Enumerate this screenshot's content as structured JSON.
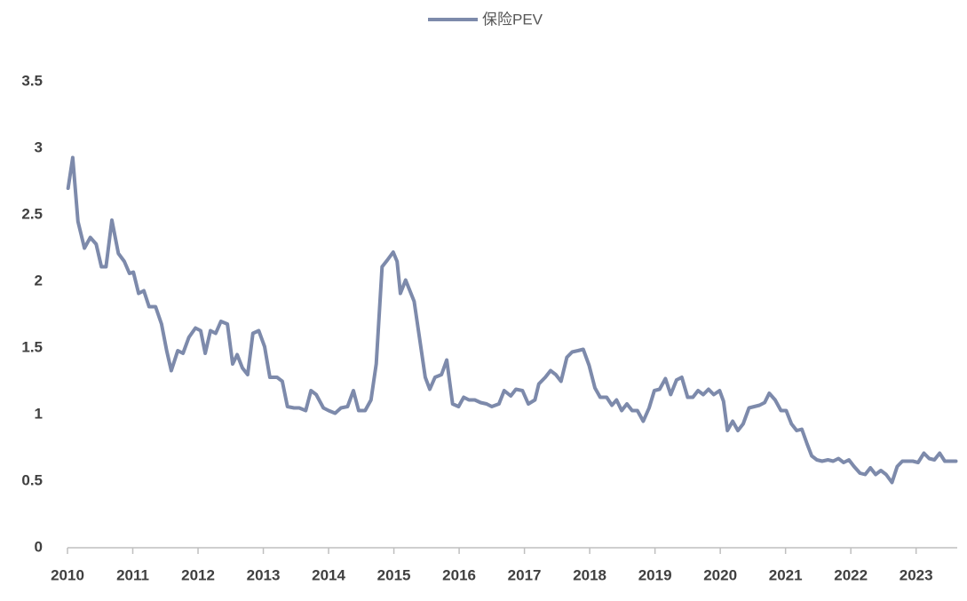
{
  "chart_data": {
    "type": "line",
    "series": [
      {
        "name": "保险PEV",
        "color": "#7d8aab",
        "x": [
          2010.01,
          2010.08,
          2010.16,
          2010.26,
          2010.35,
          2010.44,
          2010.52,
          2010.59,
          2010.68,
          2010.78,
          2010.87,
          2010.95,
          2011.01,
          2011.09,
          2011.17,
          2011.25,
          2011.35,
          2011.44,
          2011.52,
          2011.59,
          2011.69,
          2011.77,
          2011.86,
          2011.96,
          2012.04,
          2012.11,
          2012.19,
          2012.27,
          2012.35,
          2012.45,
          2012.53,
          2012.6,
          2012.68,
          2012.76,
          2012.84,
          2012.93,
          2013.02,
          2013.1,
          2013.21,
          2013.29,
          2013.37,
          2013.47,
          2013.55,
          2013.65,
          2013.73,
          2013.81,
          2013.92,
          2014.0,
          2014.1,
          2014.19,
          2014.29,
          2014.38,
          2014.46,
          2014.56,
          2014.65,
          2014.73,
          2014.82,
          2014.9,
          2014.99,
          2015.05,
          2015.1,
          2015.18,
          2015.31,
          2015.4,
          2015.48,
          2015.55,
          2015.63,
          2015.73,
          2015.81,
          2015.9,
          2015.99,
          2016.07,
          2016.15,
          2016.24,
          2016.33,
          2016.42,
          2016.5,
          2016.61,
          2016.69,
          2016.79,
          2016.87,
          2016.97,
          2017.06,
          2017.16,
          2017.22,
          2017.32,
          2017.4,
          2017.48,
          2017.56,
          2017.65,
          2017.73,
          2017.82,
          2017.9,
          2017.99,
          2018.08,
          2018.16,
          2018.26,
          2018.34,
          2018.41,
          2018.49,
          2018.57,
          2018.65,
          2018.73,
          2018.82,
          2018.91,
          2018.99,
          2019.07,
          2019.16,
          2019.24,
          2019.33,
          2019.41,
          2019.5,
          2019.58,
          2019.66,
          2019.74,
          2019.82,
          2019.9,
          2019.99,
          2020.05,
          2020.11,
          2020.19,
          2020.27,
          2020.35,
          2020.44,
          2020.52,
          2020.6,
          2020.68,
          2020.75,
          2020.84,
          2020.93,
          2021.01,
          2021.09,
          2021.17,
          2021.25,
          2021.33,
          2021.4,
          2021.48,
          2021.56,
          2021.65,
          2021.73,
          2021.81,
          2021.89,
          2021.97,
          2022.05,
          2022.14,
          2022.22,
          2022.3,
          2022.38,
          2022.46,
          2022.54,
          2022.63,
          2022.71,
          2022.79,
          2022.87,
          2022.95,
          2023.03,
          2023.12,
          2023.2,
          2023.28,
          2023.36,
          2023.44,
          2023.52,
          2023.61
        ],
        "values": [
          2.7,
          2.93,
          2.45,
          2.25,
          2.33,
          2.28,
          2.11,
          2.11,
          2.46,
          2.21,
          2.15,
          2.06,
          2.07,
          1.91,
          1.93,
          1.81,
          1.81,
          1.68,
          1.48,
          1.33,
          1.48,
          1.46,
          1.58,
          1.65,
          1.63,
          1.46,
          1.63,
          1.61,
          1.7,
          1.68,
          1.38,
          1.45,
          1.35,
          1.3,
          1.61,
          1.63,
          1.51,
          1.28,
          1.28,
          1.25,
          1.06,
          1.05,
          1.05,
          1.03,
          1.18,
          1.15,
          1.05,
          1.03,
          1.01,
          1.05,
          1.06,
          1.18,
          1.03,
          1.03,
          1.11,
          1.38,
          2.11,
          2.16,
          2.22,
          2.15,
          1.91,
          2.01,
          1.85,
          1.55,
          1.28,
          1.19,
          1.28,
          1.3,
          1.41,
          1.08,
          1.06,
          1.13,
          1.11,
          1.11,
          1.09,
          1.08,
          1.06,
          1.08,
          1.18,
          1.14,
          1.19,
          1.18,
          1.08,
          1.11,
          1.23,
          1.28,
          1.33,
          1.3,
          1.25,
          1.43,
          1.47,
          1.48,
          1.49,
          1.37,
          1.2,
          1.13,
          1.13,
          1.07,
          1.11,
          1.03,
          1.08,
          1.03,
          1.03,
          0.95,
          1.05,
          1.18,
          1.19,
          1.27,
          1.15,
          1.26,
          1.28,
          1.13,
          1.13,
          1.18,
          1.15,
          1.19,
          1.15,
          1.18,
          1.1,
          0.88,
          0.95,
          0.88,
          0.93,
          1.05,
          1.06,
          1.07,
          1.09,
          1.16,
          1.11,
          1.03,
          1.03,
          0.93,
          0.88,
          0.89,
          0.78,
          0.69,
          0.66,
          0.65,
          0.66,
          0.65,
          0.67,
          0.64,
          0.66,
          0.61,
          0.56,
          0.55,
          0.6,
          0.55,
          0.58,
          0.55,
          0.49,
          0.61,
          0.65,
          0.65,
          0.65,
          0.64,
          0.71,
          0.67,
          0.66,
          0.71,
          0.65,
          0.65,
          0.65
        ]
      }
    ],
    "xlim": [
      2010,
      2023.63
    ],
    "xticks": [
      2010,
      2011,
      2012,
      2013,
      2014,
      2015,
      2016,
      2017,
      2018,
      2019,
      2020,
      2021,
      2022,
      2023
    ],
    "ylim": [
      0,
      3.5
    ],
    "yticks": [
      0,
      0.5,
      1,
      1.5,
      2,
      2.5,
      3,
      3.5
    ],
    "grid": false,
    "legend": "top"
  }
}
